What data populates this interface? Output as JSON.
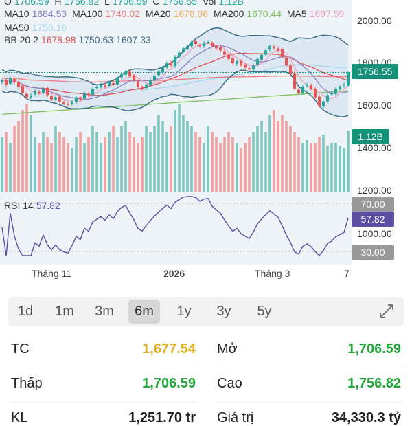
{
  "ohlc_header": {
    "o_label": "O",
    "o": "1706.59",
    "h_label": "H",
    "h": "1756.82",
    "l_label": "L",
    "l": "1706.59",
    "c_label": "C",
    "c": "1756.55",
    "vol_label": "Vol",
    "vol": "1,12B"
  },
  "ma_legend": [
    {
      "label": "MA10",
      "value": "1684.53",
      "color": "#8a7fc0"
    },
    {
      "label": "MA100",
      "value": "1749.02",
      "color": "#e87f7f"
    },
    {
      "label": "MA20",
      "value": "1678.98",
      "color": "#f0b060"
    },
    {
      "label": "MA200",
      "value": "1670.44",
      "color": "#7cc25a"
    },
    {
      "label": "MA5",
      "value": "1697.59",
      "color": "#f0a0c0"
    },
    {
      "label": "MA50",
      "value": "1756.16",
      "color": "#9fd3ea"
    }
  ],
  "bb_legend": {
    "label": "BB 20 2",
    "mid": "1678.98",
    "upper": "1750.63",
    "lower": "1607.33"
  },
  "rsi_legend": {
    "label": "RSI 14",
    "value": "57.82"
  },
  "price_axis": [
    "2000.00",
    "1800.00",
    "1600.00",
    "1400.00",
    "1200.00",
    "1000.00"
  ],
  "tags": {
    "price": "1756.55",
    "volume": "1.12B",
    "rsi70": "70.00",
    "rsi": "57.82",
    "rsi30": "30.00"
  },
  "time_labels": [
    "Tháng 11",
    "2026",
    "Tháng 3",
    "7"
  ],
  "colors": {
    "up": "#26a69a",
    "down": "#ef5350",
    "bb": "#3d6f86",
    "rsi": "#5b4fa0"
  },
  "closes": [
    1720,
    1700,
    1730,
    1710,
    1690,
    1660,
    1640,
    1650,
    1670,
    1660,
    1680,
    1650,
    1630,
    1640,
    1620,
    1610,
    1605,
    1620,
    1640,
    1630,
    1660,
    1650,
    1680,
    1690,
    1700,
    1690,
    1710,
    1700,
    1730,
    1750,
    1760,
    1740,
    1720,
    1690,
    1680,
    1700,
    1720,
    1740,
    1760,
    1780,
    1800,
    1790,
    1830,
    1850,
    1870,
    1880,
    1900,
    1890,
    1880,
    1895,
    1900,
    1880,
    1870,
    1860,
    1840,
    1820,
    1800,
    1810,
    1790,
    1780,
    1770,
    1790,
    1820,
    1840,
    1860,
    1880,
    1870,
    1860,
    1830,
    1790,
    1750,
    1680,
    1660,
    1690,
    1700,
    1680,
    1640,
    1600,
    1620,
    1650,
    1660,
    1680,
    1690,
    1700,
    1756
  ],
  "volumes": [
    1.0,
    1.1,
    0.9,
    1.2,
    1.3,
    1.5,
    1.6,
    1.4,
    1.0,
    0.9,
    1.1,
    1.0,
    0.9,
    1.2,
    1.1,
    1.0,
    0.9,
    0.8,
    1.0,
    1.1,
    0.9,
    1.0,
    1.2,
    1.1,
    0.9,
    1.0,
    1.1,
    1.2,
    1.0,
    1.2,
    1.3,
    1.1,
    1.0,
    0.9,
    1.0,
    1.2,
    1.1,
    1.2,
    1.4,
    1.3,
    1.1,
    1.2,
    1.5,
    1.6,
    1.4,
    1.3,
    1.2,
    1.1,
    1.0,
    0.9,
    1.2,
    1.1,
    1.0,
    0.9,
    1.0,
    1.1,
    1.0,
    0.9,
    0.8,
    0.9,
    1.0,
    1.1,
    1.2,
    1.3,
    1.1,
    1.4,
    1.5,
    1.3,
    1.4,
    1.3,
    1.2,
    1.1,
    1.0,
    0.9,
    0.95,
    0.9,
    0.9,
    1.0,
    1.05,
    0.85,
    0.9,
    0.9,
    0.85,
    0.8,
    1.12
  ],
  "ma200_range": [
    1560,
    1670
  ],
  "periods": [
    "1d",
    "1m",
    "3m",
    "6m",
    "1y",
    "3y",
    "5y"
  ],
  "selected_period": "6m",
  "stats": [
    {
      "l1": "TC",
      "v1": "1,677.54",
      "c1": "#e0b020",
      "l2": "Mở",
      "v2": "1,706.59",
      "c2": "#22a63a"
    },
    {
      "l1": "Thấp",
      "v1": "1,706.59",
      "c1": "#22a63a",
      "l2": "Cao",
      "v2": "1,756.82",
      "c2": "#22a63a"
    },
    {
      "l1": "KL",
      "v1": "1,251.70 tr",
      "c1": "#222",
      "l2": "Giá trị",
      "v2": "34,330.3 tỷ",
      "c2": "#222"
    }
  ]
}
